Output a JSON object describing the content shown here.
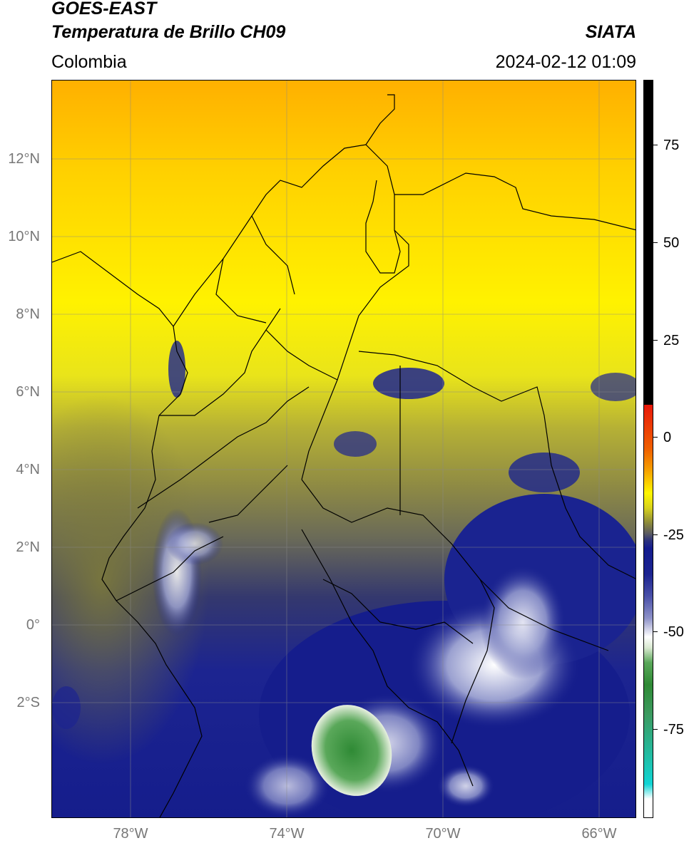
{
  "header": {
    "title_line1": "GOES-EAST",
    "title_line2": "Temperatura de Brillo CH09",
    "region": "Colombia",
    "brand": "SIATA",
    "timestamp": "2024-02-12 01:09"
  },
  "map": {
    "lat_labels": [
      "12°N",
      "10°N",
      "8°N",
      "6°N",
      "4°N",
      "2°N",
      "0°",
      "2°S"
    ],
    "lon_labels": [
      "78°W",
      "74°W",
      "70°W",
      "66°W"
    ],
    "gridlines": true
  },
  "colorbar": {
    "tick_labels": [
      "75",
      "50",
      "25",
      "0",
      "-25",
      "-50",
      "-75"
    ],
    "colors": {
      "black": "#000000",
      "red": "#e8180a",
      "orange": "#f6a300",
      "yellow": "#fff700",
      "olive": "#8d8b3a",
      "gray": "#5a5a62",
      "navy": "#141c8e",
      "white": "#ffffff",
      "green": "#2f8a35",
      "cyan": "#10d5d5"
    }
  }
}
